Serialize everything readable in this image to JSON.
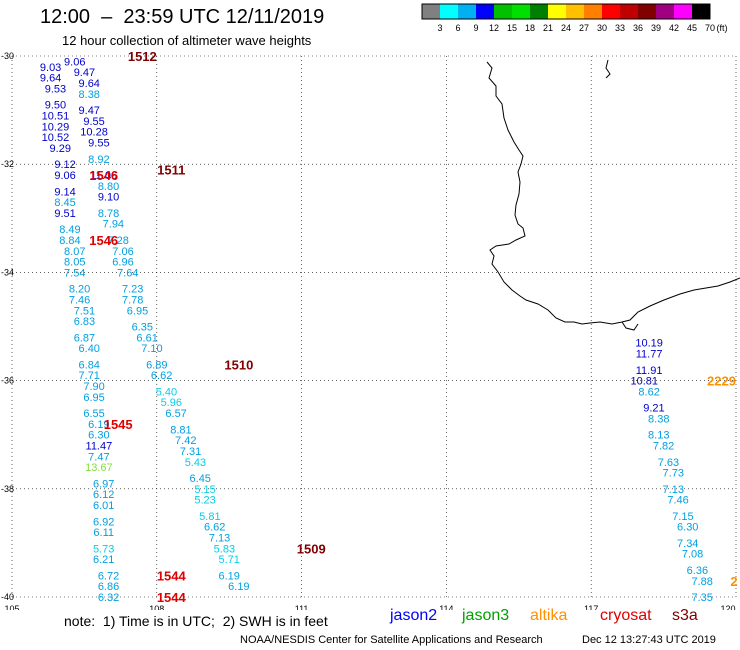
{
  "header": {
    "title": "12:00  –  23:59 UTC 12/11/2019",
    "subtitle": "12 hour collection of altimeter wave heights"
  },
  "legend": {
    "unit": "(ft)",
    "colors": [
      "#808080",
      "#00ffff",
      "#00b0f0",
      "#0000ff",
      "#00c000",
      "#00e000",
      "#008000",
      "#ffff00",
      "#ffc000",
      "#ff8000",
      "#ff0000",
      "#c00000",
      "#800000",
      "#a00080",
      "#ff00ff",
      "#000000"
    ],
    "labels": [
      "3",
      "6",
      "9",
      "12",
      "15",
      "18",
      "21",
      "24",
      "27",
      "30",
      "33",
      "36",
      "39",
      "42",
      "45",
      "70"
    ]
  },
  "axes": {
    "lon_labels": [
      "105",
      "108",
      "111",
      "114",
      "117",
      "120"
    ],
    "lat_labels": [
      "-30",
      "-32",
      "-34",
      "-36",
      "-38",
      "-40"
    ]
  },
  "tracks": [
    {
      "name": "track-left",
      "values": [
        {
          "lat": -30.1,
          "lon": 106.3,
          "v": "9.06",
          "c": "#0000cc"
        },
        {
          "lat": -30.3,
          "lon": 106.5,
          "v": "9.47",
          "c": "#0000cc"
        },
        {
          "lat": -30.2,
          "lon": 105.8,
          "v": "9.03",
          "c": "#0000cc"
        },
        {
          "lat": -30.4,
          "lon": 105.8,
          "v": "9.64",
          "c": "#0000cc"
        },
        {
          "lat": -30.5,
          "lon": 106.6,
          "v": "9.64",
          "c": "#0000cc"
        },
        {
          "lat": -30.6,
          "lon": 105.9,
          "v": "9.53",
          "c": "#0000cc"
        },
        {
          "lat": -30.7,
          "lon": 106.6,
          "v": "8.38",
          "c": "#00a0e0"
        },
        {
          "lat": -30.9,
          "lon": 105.9,
          "v": "9.50",
          "c": "#0000cc"
        },
        {
          "lat": -31.0,
          "lon": 106.6,
          "v": "9.47",
          "c": "#0000cc"
        },
        {
          "lat": -31.1,
          "lon": 105.9,
          "v": "10.51",
          "c": "#0000cc"
        },
        {
          "lat": -31.2,
          "lon": 106.7,
          "v": "9.55",
          "c": "#0000cc"
        },
        {
          "lat": -31.3,
          "lon": 105.9,
          "v": "10.29",
          "c": "#0000cc"
        },
        {
          "lat": -31.4,
          "lon": 106.7,
          "v": "10.28",
          "c": "#0000cc"
        },
        {
          "lat": -31.5,
          "lon": 105.9,
          "v": "10.52",
          "c": "#0000cc"
        },
        {
          "lat": -31.6,
          "lon": 106.8,
          "v": "9.55",
          "c": "#0000cc"
        },
        {
          "lat": -31.7,
          "lon": 106.0,
          "v": "9.29",
          "c": "#0000cc"
        },
        {
          "lat": -31.9,
          "lon": 106.8,
          "v": "8.92",
          "c": "#00a0e0"
        },
        {
          "lat": -32.0,
          "lon": 106.1,
          "v": "9.12",
          "c": "#0000cc"
        },
        {
          "lat": -32.2,
          "lon": 106.9,
          "v": "11.06",
          "c": "#0000cc"
        },
        {
          "lat": -32.2,
          "lon": 106.1,
          "v": "9.06",
          "c": "#0000cc"
        },
        {
          "lat": -32.4,
          "lon": 107.0,
          "v": "8.80",
          "c": "#00a0e0"
        },
        {
          "lat": -32.5,
          "lon": 106.1,
          "v": "9.14",
          "c": "#0000cc"
        },
        {
          "lat": -32.6,
          "lon": 107.0,
          "v": "9.10",
          "c": "#0000cc"
        },
        {
          "lat": -32.7,
          "lon": 106.1,
          "v": "8.45",
          "c": "#00a0e0"
        },
        {
          "lat": -32.9,
          "lon": 107.0,
          "v": "8.78",
          "c": "#00a0e0"
        },
        {
          "lat": -32.9,
          "lon": 106.1,
          "v": "9.51",
          "c": "#0000cc"
        },
        {
          "lat": -33.1,
          "lon": 107.1,
          "v": "7.94",
          "c": "#00a0e0"
        },
        {
          "lat": -33.2,
          "lon": 106.2,
          "v": "8.49",
          "c": "#00a0e0"
        },
        {
          "lat": -33.4,
          "lon": 106.2,
          "v": "8.84",
          "c": "#00a0e0"
        },
        {
          "lat": -33.4,
          "lon": 107.2,
          "v": "7.28",
          "c": "#00a0e0"
        },
        {
          "lat": -33.6,
          "lon": 106.3,
          "v": "8.07",
          "c": "#00a0e0"
        },
        {
          "lat": -33.6,
          "lon": 107.3,
          "v": "7.06",
          "c": "#00a0e0"
        },
        {
          "lat": -33.8,
          "lon": 106.3,
          "v": "8.05",
          "c": "#00a0e0"
        },
        {
          "lat": -33.8,
          "lon": 107.3,
          "v": "6.96",
          "c": "#00a0e0"
        },
        {
          "lat": -34.0,
          "lon": 106.3,
          "v": "7.54",
          "c": "#00a0e0"
        },
        {
          "lat": -34.0,
          "lon": 107.4,
          "v": "7.64",
          "c": "#00a0e0"
        },
        {
          "lat": -34.3,
          "lon": 106.4,
          "v": "8.20",
          "c": "#00a0e0"
        },
        {
          "lat": -34.3,
          "lon": 107.5,
          "v": "7.23",
          "c": "#00a0e0"
        },
        {
          "lat": -34.5,
          "lon": 106.4,
          "v": "7.46",
          "c": "#00a0e0"
        },
        {
          "lat": -34.5,
          "lon": 107.5,
          "v": "7.78",
          "c": "#00a0e0"
        },
        {
          "lat": -34.7,
          "lon": 106.5,
          "v": "7.51",
          "c": "#00a0e0"
        },
        {
          "lat": -34.7,
          "lon": 107.6,
          "v": "6.95",
          "c": "#00a0e0"
        },
        {
          "lat": -34.9,
          "lon": 106.5,
          "v": "6.83",
          "c": "#00a0e0"
        },
        {
          "lat": -35.0,
          "lon": 107.7,
          "v": "6.35",
          "c": "#00a0e0"
        },
        {
          "lat": -35.2,
          "lon": 106.5,
          "v": "6.87",
          "c": "#00a0e0"
        },
        {
          "lat": -35.2,
          "lon": 107.8,
          "v": "6.61",
          "c": "#00a0e0"
        },
        {
          "lat": -35.4,
          "lon": 106.6,
          "v": "6.40",
          "c": "#00a0e0"
        },
        {
          "lat": -35.4,
          "lon": 107.9,
          "v": "7.10",
          "c": "#00a0e0"
        },
        {
          "lat": -35.7,
          "lon": 106.6,
          "v": "6.84",
          "c": "#00a0e0"
        },
        {
          "lat": -35.7,
          "lon": 108.0,
          "v": "6.89",
          "c": "#00a0e0"
        },
        {
          "lat": -35.9,
          "lon": 106.6,
          "v": "7.71",
          "c": "#00a0e0"
        },
        {
          "lat": -35.9,
          "lon": 108.1,
          "v": "6.62",
          "c": "#00a0e0"
        },
        {
          "lat": -36.1,
          "lon": 106.7,
          "v": "7.90",
          "c": "#00a0e0"
        },
        {
          "lat": -36.2,
          "lon": 108.2,
          "v": "5.40",
          "c": "#00d0e8"
        },
        {
          "lat": -36.3,
          "lon": 106.7,
          "v": "6.95",
          "c": "#00a0e0"
        },
        {
          "lat": -36.4,
          "lon": 108.3,
          "v": "5.96",
          "c": "#00d0e8"
        },
        {
          "lat": -36.6,
          "lon": 106.7,
          "v": "6.55",
          "c": "#00a0e0"
        },
        {
          "lat": -36.6,
          "lon": 108.4,
          "v": "6.57",
          "c": "#00a0e0"
        },
        {
          "lat": -36.8,
          "lon": 106.8,
          "v": "6.19",
          "c": "#00a0e0"
        },
        {
          "lat": -36.9,
          "lon": 108.5,
          "v": "8.81",
          "c": "#00a0e0"
        },
        {
          "lat": -37.0,
          "lon": 106.8,
          "v": "6.30",
          "c": "#00a0e0"
        },
        {
          "lat": -37.1,
          "lon": 108.6,
          "v": "7.42",
          "c": "#00a0e0"
        },
        {
          "lat": -37.2,
          "lon": 106.8,
          "v": "11.47",
          "c": "#0000cc"
        },
        {
          "lat": -37.3,
          "lon": 108.7,
          "v": "7.31",
          "c": "#00a0e0"
        },
        {
          "lat": -37.4,
          "lon": 106.8,
          "v": "7.47",
          "c": "#00a0e0"
        },
        {
          "lat": -37.5,
          "lon": 108.8,
          "v": "5.43",
          "c": "#00d0e8"
        },
        {
          "lat": -37.6,
          "lon": 106.8,
          "v": "13.67",
          "c": "#80e040"
        },
        {
          "lat": -37.8,
          "lon": 108.9,
          "v": "6.45",
          "c": "#00a0e0"
        },
        {
          "lat": -37.9,
          "lon": 106.9,
          "v": "6.97",
          "c": "#00a0e0"
        },
        {
          "lat": -38.0,
          "lon": 109.0,
          "v": "5.15",
          "c": "#00d0e8"
        },
        {
          "lat": -38.1,
          "lon": 106.9,
          "v": "6.12",
          "c": "#00a0e0"
        },
        {
          "lat": -38.2,
          "lon": 109.0,
          "v": "5.23",
          "c": "#00d0e8"
        },
        {
          "lat": -38.3,
          "lon": 106.9,
          "v": "6.01",
          "c": "#00a0e0"
        },
        {
          "lat": -38.5,
          "lon": 109.1,
          "v": "5.81",
          "c": "#00d0e8"
        },
        {
          "lat": -38.6,
          "lon": 106.9,
          "v": "6.92",
          "c": "#00a0e0"
        },
        {
          "lat": -38.7,
          "lon": 109.2,
          "v": "6.62",
          "c": "#00a0e0"
        },
        {
          "lat": -38.8,
          "lon": 106.9,
          "v": "6.11",
          "c": "#00a0e0"
        },
        {
          "lat": -38.9,
          "lon": 109.3,
          "v": "7.13",
          "c": "#00a0e0"
        },
        {
          "lat": -39.1,
          "lon": 106.9,
          "v": "5.73",
          "c": "#00d0e8"
        },
        {
          "lat": -39.1,
          "lon": 109.4,
          "v": "5.83",
          "c": "#00d0e8"
        },
        {
          "lat": -39.3,
          "lon": 106.9,
          "v": "6.21",
          "c": "#00a0e0"
        },
        {
          "lat": -39.3,
          "lon": 109.5,
          "v": "5.71",
          "c": "#00d0e8"
        },
        {
          "lat": -39.6,
          "lon": 107.0,
          "v": "6.72",
          "c": "#00a0e0"
        },
        {
          "lat": -39.6,
          "lon": 109.5,
          "v": "6.19",
          "c": "#00a0e0"
        },
        {
          "lat": -39.8,
          "lon": 107.0,
          "v": "6.86",
          "c": "#00a0e0"
        },
        {
          "lat": -39.8,
          "lon": 109.7,
          "v": "6.19",
          "c": "#00a0e0"
        },
        {
          "lat": -40.0,
          "lon": 107.0,
          "v": "6.32",
          "c": "#00a0e0"
        }
      ]
    },
    {
      "name": "track-right",
      "values": [
        {
          "lat": -35.3,
          "lon": 118.2,
          "v": "10.19",
          "c": "#0000cc"
        },
        {
          "lat": -35.5,
          "lon": 118.2,
          "v": "11.77",
          "c": "#0000cc"
        },
        {
          "lat": -35.8,
          "lon": 118.2,
          "v": "11.91",
          "c": "#0000cc"
        },
        {
          "lat": -36.0,
          "lon": 118.1,
          "v": "10.81",
          "c": "#0000cc"
        },
        {
          "lat": -36.2,
          "lon": 118.2,
          "v": "8.62",
          "c": "#00a0e0"
        },
        {
          "lat": -36.5,
          "lon": 118.3,
          "v": "9.21",
          "c": "#0000cc"
        },
        {
          "lat": -36.7,
          "lon": 118.4,
          "v": "8.38",
          "c": "#00a0e0"
        },
        {
          "lat": -37.0,
          "lon": 118.4,
          "v": "8.13",
          "c": "#00a0e0"
        },
        {
          "lat": -37.2,
          "lon": 118.5,
          "v": "7.82",
          "c": "#00a0e0"
        },
        {
          "lat": -37.5,
          "lon": 118.6,
          "v": "7.63",
          "c": "#00a0e0"
        },
        {
          "lat": -37.7,
          "lon": 118.7,
          "v": "7.73",
          "c": "#00a0e0"
        },
        {
          "lat": -38.0,
          "lon": 118.7,
          "v": "7.13",
          "c": "#00a0e0"
        },
        {
          "lat": -38.2,
          "lon": 118.8,
          "v": "7.46",
          "c": "#00a0e0"
        },
        {
          "lat": -38.5,
          "lon": 118.9,
          "v": "7.15",
          "c": "#00a0e0"
        },
        {
          "lat": -38.7,
          "lon": 119.0,
          "v": "6.30",
          "c": "#00a0e0"
        },
        {
          "lat": -39.0,
          "lon": 119.0,
          "v": "7.34",
          "c": "#00a0e0"
        },
        {
          "lat": -39.2,
          "lon": 119.1,
          "v": "7.08",
          "c": "#00a0e0"
        },
        {
          "lat": -39.5,
          "lon": 119.2,
          "v": "6.36",
          "c": "#00a0e0"
        },
        {
          "lat": -39.7,
          "lon": 119.3,
          "v": "7.88",
          "c": "#00a0e0"
        },
        {
          "lat": -40.0,
          "lon": 119.3,
          "v": "7.35",
          "c": "#00a0e0"
        }
      ]
    }
  ],
  "time_labels": [
    {
      "lat": -30.0,
      "lon": 107.7,
      "v": "1512",
      "c": "#800000"
    },
    {
      "lat": -32.2,
      "lon": 106.9,
      "v": "1546",
      "c": "#e00000"
    },
    {
      "lat": -32.1,
      "lon": 108.3,
      "v": "1511",
      "c": "#800000"
    },
    {
      "lat": -33.4,
      "lon": 106.9,
      "v": "1546",
      "c": "#e00000"
    },
    {
      "lat": -35.7,
      "lon": 109.7,
      "v": "1510",
      "c": "#800000"
    },
    {
      "lat": -36.8,
      "lon": 107.2,
      "v": "1545",
      "c": "#e00000"
    },
    {
      "lat": -39.1,
      "lon": 111.2,
      "v": "1509",
      "c": "#800000"
    },
    {
      "lat": -39.6,
      "lon": 108.3,
      "v": "1544",
      "c": "#e00000"
    },
    {
      "lat": -40.0,
      "lon": 108.3,
      "v": "1544",
      "c": "#e00000"
    },
    {
      "lat": -36.0,
      "lon": 119.7,
      "v": "2229",
      "c": "#ff9000"
    },
    {
      "lat": -39.7,
      "lon": 120.0,
      "v": "2",
      "c": "#ff9000"
    }
  ],
  "footer": {
    "note": "note:  1) Time is in UTC;  2) SWH is in feet",
    "satellites": [
      {
        "label": "jason2",
        "color": "#0000ff"
      },
      {
        "label": "jason3",
        "color": "#00a000"
      },
      {
        "label": "altika",
        "color": "#ff9000"
      },
      {
        "label": "cryosat",
        "color": "#e00000"
      },
      {
        "label": "s3a",
        "color": "#800000"
      }
    ],
    "credit": "NOAA/NESDIS Center for Satellite Applications and Research",
    "timestamp": "Dec 12 13:27:43 UTC 2019"
  }
}
